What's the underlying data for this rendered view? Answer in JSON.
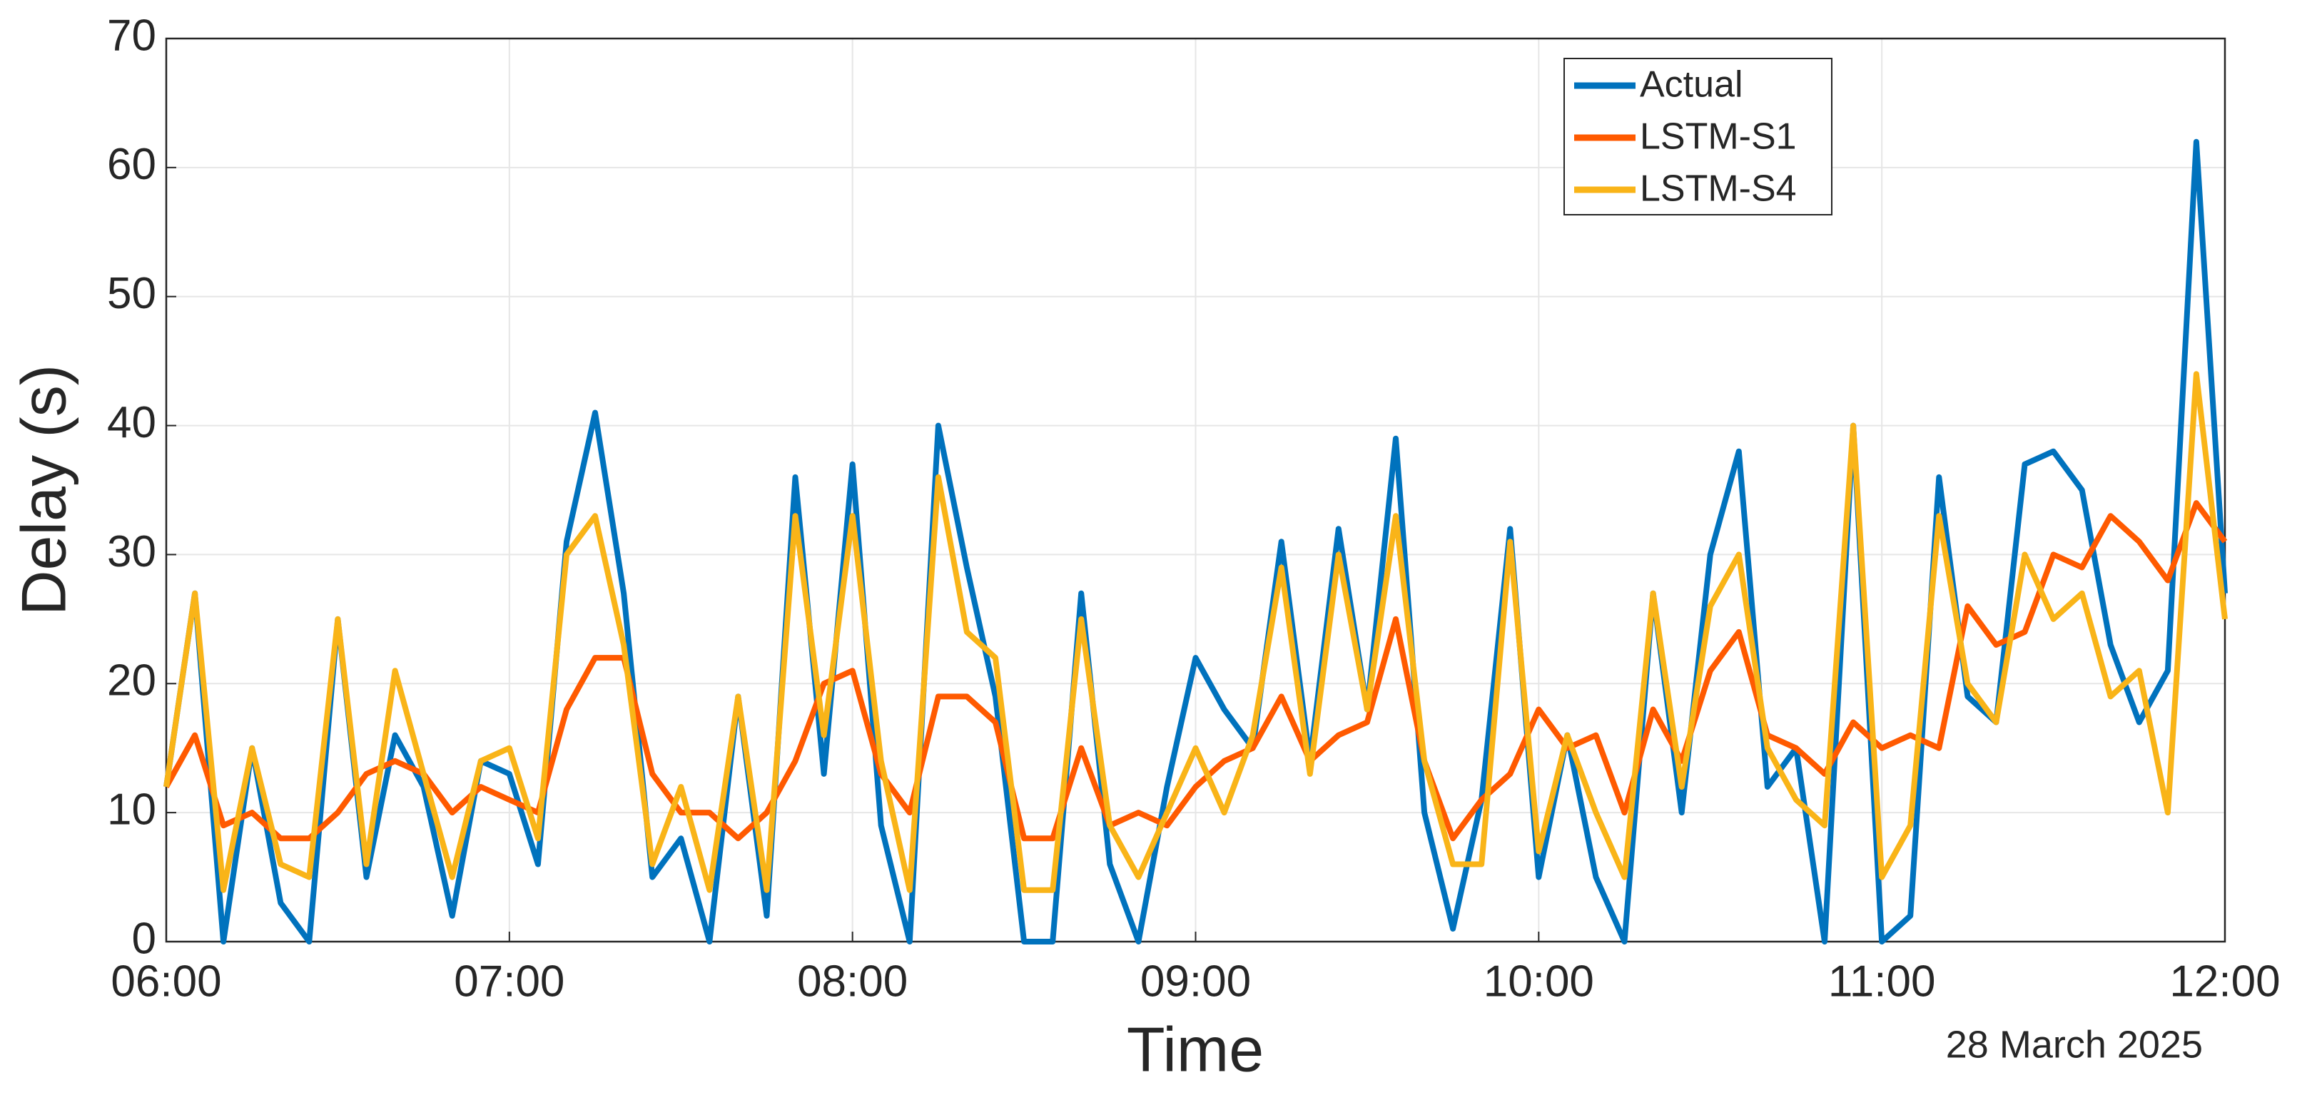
{
  "chart_data": {
    "type": "line",
    "x_label": "Time",
    "y_label": "Delay (s)",
    "annotation": "28 March 2025",
    "x": [
      "06:00",
      "06:05",
      "06:10",
      "06:15",
      "06:20",
      "06:25",
      "06:30",
      "06:35",
      "06:40",
      "06:45",
      "06:50",
      "06:55",
      "07:00",
      "07:05",
      "07:10",
      "07:15",
      "07:20",
      "07:25",
      "07:30",
      "07:35",
      "07:40",
      "07:45",
      "07:50",
      "07:55",
      "08:00",
      "08:05",
      "08:10",
      "08:15",
      "08:20",
      "08:25",
      "08:30",
      "08:35",
      "08:40",
      "08:45",
      "08:50",
      "08:55",
      "09:00",
      "09:05",
      "09:10",
      "09:15",
      "09:20",
      "09:25",
      "09:30",
      "09:35",
      "09:40",
      "09:45",
      "09:50",
      "09:55",
      "10:00",
      "10:05",
      "10:10",
      "10:15",
      "10:20",
      "10:25",
      "10:30",
      "10:35",
      "10:40",
      "10:45",
      "10:50",
      "10:55",
      "11:00",
      "11:05",
      "11:10",
      "11:15",
      "11:20",
      "11:25",
      "11:30",
      "11:35",
      "11:40",
      "11:45",
      "11:50",
      "11:55",
      "12:00"
    ],
    "series": [
      {
        "name": "Actual",
        "color": "#0072BD",
        "values": [
          12,
          27,
          0,
          15,
          3,
          0,
          25,
          5,
          16,
          12,
          2,
          14,
          13,
          6,
          31,
          41,
          27,
          5,
          8,
          0,
          19,
          2,
          36,
          13,
          37,
          9,
          0,
          40,
          29,
          19,
          0,
          0,
          27,
          6,
          0,
          12,
          22,
          18,
          15,
          31,
          14,
          32,
          18,
          39,
          10,
          1,
          11,
          32,
          5,
          16,
          5,
          0,
          27,
          10,
          30,
          38,
          12,
          15,
          0,
          40,
          0,
          2,
          36,
          19,
          17,
          37,
          38,
          35,
          23,
          17,
          21,
          62,
          27
        ]
      },
      {
        "name": "LSTM-S1",
        "color": "#FF5A00",
        "values": [
          12,
          16,
          9,
          10,
          8,
          8,
          10,
          13,
          14,
          13,
          10,
          12,
          11,
          10,
          18,
          22,
          22,
          13,
          10,
          10,
          8,
          10,
          14,
          20,
          21,
          13,
          10,
          19,
          19,
          17,
          8,
          8,
          15,
          9,
          10,
          9,
          12,
          14,
          15,
          19,
          14,
          16,
          17,
          25,
          14,
          8,
          11,
          13,
          18,
          15,
          16,
          10,
          18,
          14,
          21,
          24,
          16,
          15,
          13,
          17,
          15,
          16,
          15,
          26,
          23,
          24,
          30,
          29,
          33,
          31,
          28,
          34,
          31
        ]
      },
      {
        "name": "LSTM-S4",
        "color": "#F9B418",
        "values": [
          12,
          27,
          4,
          15,
          6,
          5,
          25,
          6,
          21,
          13,
          5,
          14,
          15,
          8,
          30,
          33,
          23,
          6,
          12,
          4,
          19,
          4,
          33,
          16,
          33,
          14,
          4,
          36,
          24,
          22,
          4,
          4,
          25,
          9,
          5,
          10,
          15,
          10,
          16,
          29,
          13,
          30,
          18,
          33,
          14,
          6,
          6,
          31,
          7,
          16,
          10,
          5,
          27,
          12,
          26,
          30,
          15,
          11,
          9,
          40,
          5,
          9,
          33,
          20,
          17,
          30,
          25,
          27,
          19,
          21,
          10,
          44,
          25
        ]
      }
    ],
    "xlim": [
      "06:00",
      "12:00"
    ],
    "xticks": [
      "06:00",
      "07:00",
      "08:00",
      "09:00",
      "10:00",
      "11:00",
      "12:00"
    ],
    "ylim": [
      0,
      70
    ],
    "yticks": [
      0,
      10,
      20,
      30,
      40,
      50,
      60,
      70
    ],
    "grid": true
  }
}
